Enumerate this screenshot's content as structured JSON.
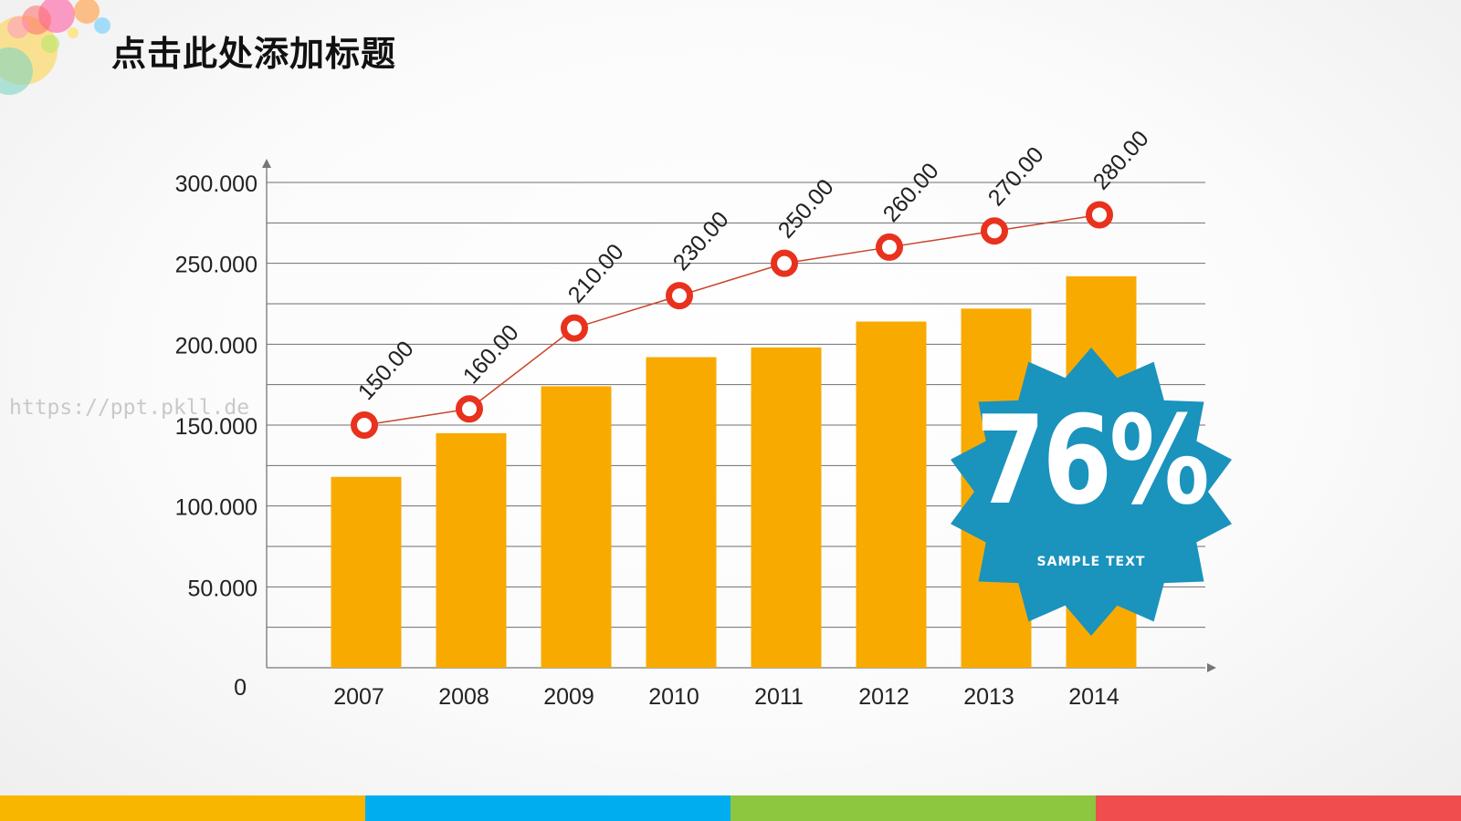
{
  "slide": {
    "title": "点击此处添加标题",
    "watermark": "https://ppt.pkll.de"
  },
  "chart_data": {
    "type": "bar",
    "categories": [
      "2007",
      "2008",
      "2009",
      "2010",
      "2011",
      "2012",
      "2013",
      "2014"
    ],
    "series": [
      {
        "type": "bar",
        "values": [
          118,
          145,
          174,
          192,
          198,
          214,
          222,
          242
        ],
        "color": "#F9AA00"
      },
      {
        "type": "line",
        "values": [
          150,
          160,
          210,
          230,
          250,
          260,
          270,
          280
        ],
        "labels": [
          "150.00",
          "160.00",
          "210.00",
          "230.00",
          "250.00",
          "260.00",
          "270.00",
          "280.00"
        ],
        "color": "#E8321E"
      }
    ],
    "yticks": [
      {
        "value": 0,
        "label": "0"
      },
      {
        "value": 50,
        "label": "50.000"
      },
      {
        "value": 100,
        "label": "100.000"
      },
      {
        "value": 150,
        "label": "150.000"
      },
      {
        "value": 200,
        "label": "200.000"
      },
      {
        "value": 250,
        "label": "250.000"
      },
      {
        "value": 300,
        "label": "300.000"
      }
    ],
    "ylim": [
      0,
      300
    ],
    "gridlines": true,
    "xlabel": "",
    "ylabel": ""
  },
  "badge": {
    "value": "76%",
    "caption": "SAMPLE TEXT",
    "color": "#1A93BD"
  },
  "colors": {
    "bar": "#F9AA00",
    "line": "#E8321E",
    "grid": "#6e6e6e",
    "bottom_bar": [
      "#F9B600",
      "#00AEEF",
      "#8DC63F",
      "#F04E4E"
    ]
  }
}
